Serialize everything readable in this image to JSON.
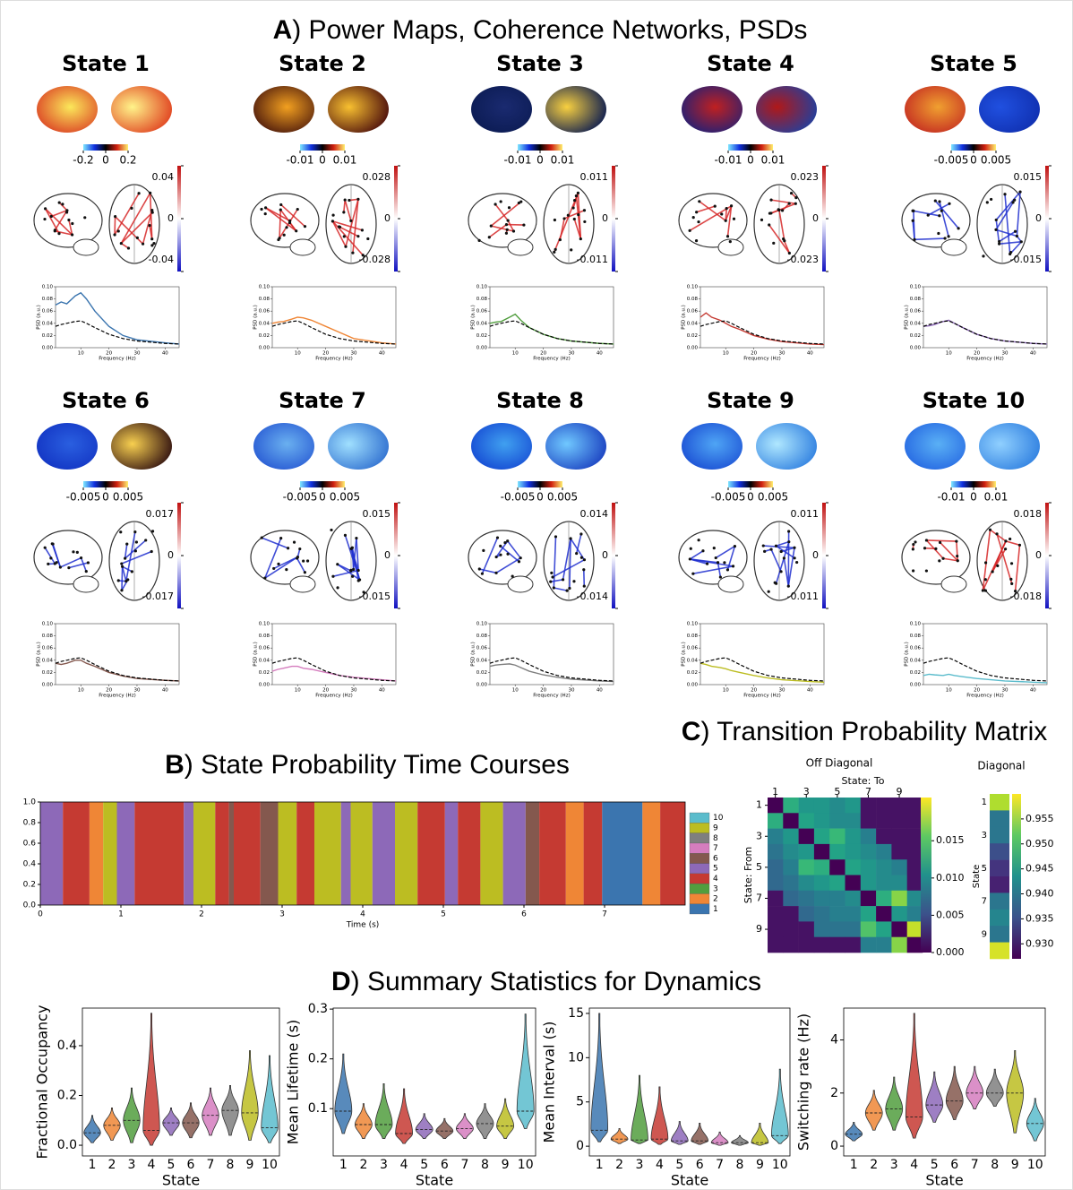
{
  "chart_data": [
    {
      "type": "state_panels",
      "label": "A",
      "title": ") Power Maps, Coherence Networks, PSDs",
      "psd_ylabel": "PSD (a.u.)",
      "psd_xlabel": "Frequency (Hz)",
      "psd_xlim": [
        1,
        45
      ],
      "psd_ylim": [
        0,
        0.1
      ],
      "psd_xticks": [
        10,
        20,
        30,
        40
      ],
      "psd_yticks": [
        {
          "value": 0,
          "label": "0.00"
        },
        {
          "value": 0.02,
          "label": "0.02"
        },
        {
          "value": 0.04,
          "label": "0.04"
        },
        {
          "value": 0.06,
          "label": "0.06"
        },
        {
          "value": 0.08,
          "label": "0.08"
        },
        {
          "value": 0.1,
          "label": "0.10"
        }
      ],
      "x": [
        1,
        3,
        5,
        8,
        10,
        12,
        15,
        20,
        25,
        30,
        40,
        45
      ],
      "mean_psd": [
        0.035,
        0.038,
        0.04,
        0.043,
        0.044,
        0.04,
        0.033,
        0.022,
        0.015,
        0.011,
        0.007,
        0.006
      ],
      "mean_color": "#000000",
      "states": [
        {
          "name": "State 1",
          "color": "#3b75af",
          "map_ticks": [
            -0.2,
            0,
            0.2
          ],
          "network_ticks": [
            0.04,
            0,
            -0.04
          ],
          "network_color": "#d62728",
          "map_colors": [
            "#fbe85a",
            "#d8301f",
            "#fff48a",
            "#e0401f"
          ],
          "psd": [
            0.07,
            0.075,
            0.072,
            0.085,
            0.09,
            0.08,
            0.06,
            0.035,
            0.02,
            0.013,
            0.008,
            0.006
          ]
        },
        {
          "name": "State 2",
          "color": "#ef8636",
          "map_ticks": [
            -0.01,
            0,
            0.01
          ],
          "network_ticks": [
            0.028,
            0,
            -0.028
          ],
          "network_color": "#d62728",
          "map_colors": [
            "#f2a020",
            "#3a0a0a",
            "#f8c030",
            "#4a0c0c"
          ],
          "psd": [
            0.04,
            0.042,
            0.043,
            0.047,
            0.05,
            0.049,
            0.045,
            0.035,
            0.025,
            0.015,
            0.008,
            0.006
          ]
        },
        {
          "name": "State 3",
          "color": "#519e3e",
          "map_ticks": [
            -0.01,
            0,
            0.01
          ],
          "network_ticks": [
            0.011,
            0,
            -0.011
          ],
          "network_color": "#d62728",
          "map_colors": [
            "#1a2a70",
            "#0a1a50",
            "#f8d040",
            "#0a1a50"
          ],
          "psd": [
            0.04,
            0.042,
            0.043,
            0.05,
            0.055,
            0.045,
            0.033,
            0.022,
            0.015,
            0.011,
            0.007,
            0.006
          ]
        },
        {
          "name": "State 4",
          "color": "#c53a32",
          "map_ticks": [
            -0.01,
            0,
            0.01
          ],
          "network_ticks": [
            0.023,
            0,
            -0.023
          ],
          "network_color": "#d62728",
          "map_colors": [
            "#c02020",
            "#102080",
            "#b01818",
            "#2040a0"
          ],
          "psd": [
            0.05,
            0.057,
            0.05,
            0.045,
            0.04,
            0.035,
            0.03,
            0.02,
            0.014,
            0.01,
            0.006,
            0.005
          ]
        },
        {
          "name": "State 5",
          "color": "#8d69b8",
          "map_ticks": [
            -0.005,
            0,
            0.005
          ],
          "network_ticks": [
            0.015,
            0,
            -0.015
          ],
          "network_color": "#2030d0",
          "map_colors": [
            "#f0a030",
            "#c02020",
            "#2050e0",
            "#1030b0"
          ],
          "psd": [
            0.035,
            0.036,
            0.038,
            0.043,
            0.045,
            0.04,
            0.033,
            0.022,
            0.015,
            0.011,
            0.007,
            0.006
          ]
        },
        {
          "name": "State 6",
          "color": "#84584e",
          "map_ticks": [
            -0.005,
            0,
            0.005
          ],
          "network_ticks": [
            0.017,
            0,
            -0.017
          ],
          "network_color": "#2030d0",
          "map_colors": [
            "#2a5fe0",
            "#1030c0",
            "#f8d050",
            "#301010"
          ],
          "psd": [
            0.035,
            0.033,
            0.035,
            0.04,
            0.04,
            0.035,
            0.03,
            0.02,
            0.014,
            0.01,
            0.007,
            0.006
          ]
        },
        {
          "name": "State 7",
          "color": "#d57dbe",
          "map_ticks": [
            -0.005,
            0,
            0.005
          ],
          "network_ticks": [
            0.015,
            0,
            -0.015
          ],
          "network_color": "#2030d0",
          "map_colors": [
            "#6ab0f0",
            "#2050d0",
            "#a0e0ff",
            "#3070d0"
          ],
          "psd": [
            0.022,
            0.025,
            0.027,
            0.03,
            0.03,
            0.027,
            0.025,
            0.02,
            0.015,
            0.012,
            0.008,
            0.006
          ]
        },
        {
          "name": "State 8",
          "color": "#7f7f7f",
          "map_ticks": [
            -0.005,
            0,
            0.005
          ],
          "network_ticks": [
            0.014,
            0,
            -0.014
          ],
          "network_color": "#2030d0",
          "map_colors": [
            "#40a0f0",
            "#1040d0",
            "#70c8ff",
            "#1a40c0"
          ],
          "psd": [
            0.03,
            0.032,
            0.033,
            0.034,
            0.032,
            0.028,
            0.022,
            0.016,
            0.012,
            0.009,
            0.006,
            0.005
          ]
        },
        {
          "name": "State 9",
          "color": "#bcbd22",
          "map_ticks": [
            -0.005,
            0,
            0.005
          ],
          "network_ticks": [
            0.011,
            0,
            -0.011
          ],
          "network_color": "#2030d0",
          "map_colors": [
            "#4fa5f5",
            "#1545d0",
            "#b0e8ff",
            "#3080e0"
          ],
          "psd": [
            0.035,
            0.033,
            0.03,
            0.028,
            0.026,
            0.023,
            0.02,
            0.015,
            0.011,
            0.008,
            0.005,
            0.004
          ]
        },
        {
          "name": "State 10",
          "color": "#5bbccc",
          "map_ticks": [
            -0.01,
            0,
            0.01
          ],
          "network_ticks": [
            0.018,
            0,
            -0.018
          ],
          "network_color": "#d62728",
          "map_colors": [
            "#5ab0f5",
            "#2060e0",
            "#90d0ff",
            "#3080e0"
          ],
          "psd": [
            0.015,
            0.017,
            0.016,
            0.015,
            0.017,
            0.015,
            0.013,
            0.01,
            0.008,
            0.006,
            0.004,
            0.003
          ]
        }
      ]
    },
    {
      "type": "state_timecourse",
      "label": "B",
      "title": ") State Probability Time Courses",
      "xlabel": "Time (s)",
      "xlim": [
        0,
        8
      ],
      "ylim": [
        0,
        1
      ],
      "xticks": [
        0,
        1,
        2,
        3,
        4,
        5,
        6,
        7
      ],
      "yticks": [
        {
          "value": 0,
          "label": "0.0"
        },
        {
          "value": 0.2,
          "label": "0.2"
        },
        {
          "value": 0.4,
          "label": "0.4"
        },
        {
          "value": 0.6,
          "label": "0.6"
        },
        {
          "value": 0.8,
          "label": "0.8"
        },
        {
          "value": 1,
          "label": "1.0"
        }
      ],
      "x_edges": [
        0,
        0.28,
        0.61,
        0.78,
        0.95,
        1.17,
        1.78,
        1.9,
        2.17,
        2.34,
        2.4,
        2.73,
        2.95,
        3.18,
        3.4,
        3.73,
        3.85,
        4.12,
        4.4,
        4.68,
        5.02,
        5.18,
        5.46,
        5.74,
        6.02,
        6.19,
        6.52,
        6.74,
        6.97,
        7.47,
        7.69,
        8.0
      ],
      "states": [
        5,
        4,
        2,
        9,
        5,
        4,
        5,
        9,
        4,
        6,
        4,
        6,
        9,
        4,
        9,
        5,
        9,
        5,
        9,
        4,
        5,
        4,
        9,
        5,
        6,
        4,
        2,
        4,
        1,
        2,
        4
      ],
      "legend": [
        "1",
        "2",
        "3",
        "4",
        "5",
        "6",
        "7",
        "8",
        "9",
        "10"
      ],
      "colors": [
        "#3b75af",
        "#ef8636",
        "#519e3e",
        "#c53a32",
        "#8d69b8",
        "#84584e",
        "#d57dbe",
        "#7f7f7f",
        "#bcbd22",
        "#5bbccc"
      ]
    },
    {
      "type": "transition_matrix",
      "label": "C",
      "title": ") Transition Probability Matrix",
      "off_title": "Off Diagonal",
      "diag_title": "Diagonal",
      "xlabel": "State: To",
      "ylabel": "State: From",
      "diag_ylabel": "State",
      "ticks": [
        1,
        3,
        5,
        7,
        9
      ],
      "matrix": [
        [
          null,
          0.013,
          0.011,
          0.011,
          0.01,
          0.011,
          0.001,
          0.001,
          0.001,
          0.001
        ],
        [
          0.013,
          null,
          0.012,
          0.011,
          0.01,
          0.01,
          0.001,
          0.001,
          0.001,
          0.001
        ],
        [
          0.009,
          0.011,
          null,
          0.012,
          0.014,
          0.011,
          0.009,
          0.001,
          0.001,
          0.001
        ],
        [
          0.008,
          0.01,
          0.011,
          null,
          0.012,
          0.011,
          0.01,
          0.009,
          0.001,
          0.001
        ],
        [
          0.007,
          0.009,
          0.014,
          0.013,
          null,
          0.012,
          0.011,
          0.01,
          0.009,
          0.001
        ],
        [
          0.007,
          0.008,
          0.01,
          0.011,
          0.012,
          null,
          0.011,
          0.01,
          0.01,
          0.001
        ],
        [
          0.001,
          0.007,
          0.008,
          0.009,
          0.009,
          0.01,
          null,
          0.013,
          0.017,
          0.01
        ],
        [
          0.001,
          0.001,
          0.007,
          0.008,
          0.009,
          0.009,
          0.012,
          null,
          0.011,
          0.009
        ],
        [
          0.001,
          0.001,
          0.001,
          0.008,
          0.008,
          0.008,
          0.015,
          0.012,
          null,
          0.019
        ],
        [
          0.001,
          0.001,
          0.001,
          0.001,
          0.001,
          0.001,
          0.009,
          0.009,
          0.017,
          null
        ]
      ],
      "clim": [
        0,
        0.0208
      ],
      "cticks": [
        {
          "value": 0,
          "label": "0.000"
        },
        {
          "value": 0.005,
          "label": "0.005"
        },
        {
          "value": 0.01,
          "label": "0.010"
        },
        {
          "value": 0.015,
          "label": "0.015"
        }
      ],
      "diagonal": [
        0.956,
        0.94,
        0.94,
        0.935,
        0.932,
        0.93,
        0.94,
        0.942,
        0.94,
        0.958
      ],
      "diag_clim": [
        0.927,
        0.96
      ],
      "diag_cticks": [
        {
          "value": 0.93,
          "label": "0.930"
        },
        {
          "value": 0.935,
          "label": "0.935"
        },
        {
          "value": 0.94,
          "label": "0.940"
        },
        {
          "value": 0.945,
          "label": "0.945"
        },
        {
          "value": 0.95,
          "label": "0.950"
        },
        {
          "value": 0.955,
          "label": "0.955"
        }
      ]
    },
    {
      "type": "heading",
      "label": "D",
      "title": ") Summary Statistics for Dynamics"
    },
    {
      "type": "violin",
      "ylabel": "Fractional Occupancy",
      "xlabel": "State",
      "categories": [
        "1",
        "2",
        "3",
        "4",
        "5",
        "6",
        "7",
        "8",
        "9",
        "10"
      ],
      "ylim": [
        -0.043,
        0.551
      ],
      "yticks": [
        {
          "value": 0,
          "label": "0.0"
        },
        {
          "value": 0.2,
          "label": "0.2"
        },
        {
          "value": 0.4,
          "label": "0.4"
        }
      ],
      "medians": [
        0.05,
        0.08,
        0.1,
        0.06,
        0.09,
        0.09,
        0.12,
        0.14,
        0.13,
        0.07
      ],
      "mins": [
        0.01,
        0.02,
        0.01,
        0.0,
        0.04,
        0.03,
        0.04,
        0.04,
        0.02,
        0.01
      ],
      "maxs": [
        0.12,
        0.15,
        0.23,
        0.53,
        0.15,
        0.17,
        0.23,
        0.24,
        0.38,
        0.36
      ],
      "colors": [
        "#3b75af",
        "#ef8636",
        "#519e3e",
        "#c53a32",
        "#8d69b8",
        "#84584e",
        "#d57dbe",
        "#7f7f7f",
        "#bcbd22",
        "#5bbccc"
      ]
    },
    {
      "type": "violin",
      "ylabel": "Mean Lifetime (s)",
      "xlabel": "State",
      "categories": [
        "1",
        "2",
        "3",
        "4",
        "5",
        "6",
        "7",
        "8",
        "9",
        "10"
      ],
      "ylim": [
        0.005,
        0.302
      ],
      "yticks": [
        0.1,
        0.2,
        0.3
      ],
      "medians": [
        0.095,
        0.068,
        0.068,
        0.05,
        0.058,
        0.055,
        0.06,
        0.07,
        0.065,
        0.095
      ],
      "mins": [
        0.05,
        0.04,
        0.04,
        0.03,
        0.04,
        0.04,
        0.04,
        0.04,
        0.04,
        0.06
      ],
      "maxs": [
        0.21,
        0.11,
        0.15,
        0.14,
        0.09,
        0.08,
        0.09,
        0.11,
        0.12,
        0.29
      ],
      "colors": [
        "#3b75af",
        "#ef8636",
        "#519e3e",
        "#c53a32",
        "#8d69b8",
        "#84584e",
        "#d57dbe",
        "#7f7f7f",
        "#bcbd22",
        "#5bbccc"
      ]
    },
    {
      "type": "violin",
      "ylabel": "Mean Interval (s)",
      "xlabel": "State",
      "categories": [
        "1",
        "2",
        "3",
        "4",
        "5",
        "6",
        "7",
        "8",
        "9",
        "10"
      ],
      "ylim": [
        -1.1,
        15.6
      ],
      "yticks": [
        0,
        5,
        10,
        15
      ],
      "medians": [
        1.8,
        0.8,
        0.7,
        0.8,
        0.6,
        0.6,
        0.4,
        0.4,
        0.4,
        1.2
      ],
      "mins": [
        0.5,
        0.3,
        0.3,
        0.2,
        0.2,
        0.2,
        0.1,
        0.1,
        0.1,
        0.3
      ],
      "maxs": [
        15,
        2.0,
        8.0,
        6.7,
        2.8,
        2.6,
        1.6,
        1.2,
        2.6,
        8.7
      ],
      "colors": [
        "#3b75af",
        "#ef8636",
        "#519e3e",
        "#c53a32",
        "#8d69b8",
        "#84584e",
        "#d57dbe",
        "#7f7f7f",
        "#bcbd22",
        "#5bbccc"
      ]
    },
    {
      "type": "violin",
      "ylabel": "Switching rate (Hz)",
      "xlabel": "State",
      "categories": [
        "1",
        "2",
        "3",
        "4",
        "5",
        "6",
        "7",
        "8",
        "9",
        "10"
      ],
      "ylim": [
        -0.37,
        5.2
      ],
      "yticks": [
        0,
        2,
        4
      ],
      "medians": [
        0.45,
        1.25,
        1.4,
        1.1,
        1.55,
        1.7,
        2.0,
        2.0,
        2.0,
        0.85
      ],
      "mins": [
        0.2,
        0.6,
        0.6,
        0.3,
        0.9,
        1.0,
        1.4,
        1.5,
        0.5,
        0.2
      ],
      "maxs": [
        0.9,
        2.1,
        2.6,
        5.0,
        2.8,
        3.0,
        3.0,
        2.9,
        3.6,
        1.8
      ],
      "colors": [
        "#3b75af",
        "#ef8636",
        "#519e3e",
        "#c53a32",
        "#8d69b8",
        "#84584e",
        "#d57dbe",
        "#7f7f7f",
        "#bcbd22",
        "#5bbccc"
      ]
    }
  ]
}
